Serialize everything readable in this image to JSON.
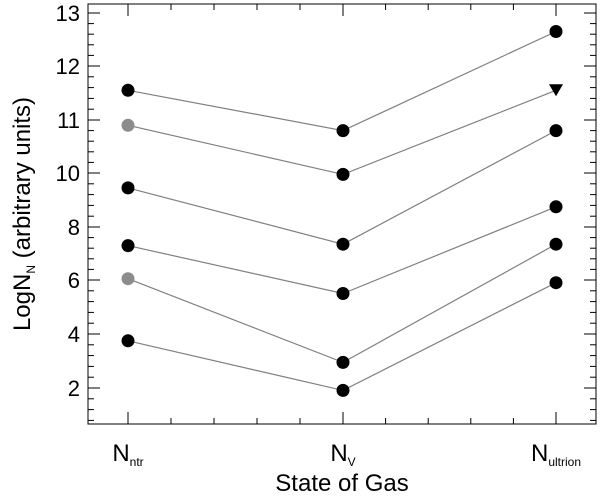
{
  "chart_data": {
    "type": "line",
    "xlabel": "State of Gas",
    "ylabel": {
      "main": "LogN",
      "sub": "N",
      "rest": " (arbitrary units)"
    },
    "categories": [
      {
        "main": "N",
        "sub": "ntr"
      },
      {
        "main": "N",
        "sub": "V"
      },
      {
        "main": "N",
        "sub": "ultrion"
      }
    ],
    "yticks": [
      2,
      4,
      6,
      8,
      10,
      11,
      12,
      13
    ],
    "series": [
      {
        "values": [
          11.55,
          10.8,
          12.65
        ],
        "colors": [
          "#000000",
          "#000000",
          "#000000"
        ],
        "markers": [
          "circle",
          "circle",
          "circle"
        ]
      },
      {
        "values": [
          10.9,
          9.95,
          11.55
        ],
        "colors": [
          "#8c8c8c",
          "#000000",
          "#000000"
        ],
        "markers": [
          "circle",
          "circle",
          "triangle-down"
        ]
      },
      {
        "values": [
          9.45,
          7.35,
          10.8
        ],
        "colors": [
          "#000000",
          "#000000",
          "#000000"
        ],
        "markers": [
          "circle",
          "circle",
          "circle"
        ]
      },
      {
        "values": [
          7.3,
          5.5,
          8.75
        ],
        "colors": [
          "#000000",
          "#000000",
          "#000000"
        ],
        "markers": [
          "circle",
          "circle",
          "circle"
        ]
      },
      {
        "values": [
          6.05,
          2.95,
          7.35
        ],
        "colors": [
          "#8c8c8c",
          "#000000",
          "#000000"
        ],
        "markers": [
          "circle",
          "circle",
          "circle"
        ]
      },
      {
        "values": [
          3.75,
          1.7,
          5.9
        ],
        "colors": [
          "#000000",
          "#000000",
          "#000000"
        ],
        "markers": [
          "circle",
          "circle",
          "circle"
        ]
      }
    ],
    "line_color": "#808080",
    "grid": false,
    "legend": "none"
  }
}
